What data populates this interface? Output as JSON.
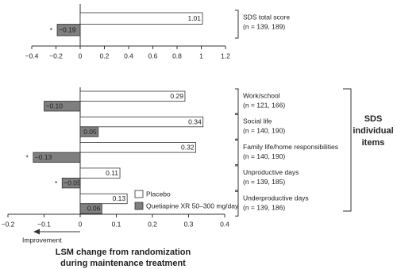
{
  "chart_data": [
    {
      "type": "bar",
      "orientation": "horizontal",
      "categories": [
        "SDS total score"
      ],
      "category_subtitles": [
        "(n = 139, 189)"
      ],
      "series": [
        {
          "color": "#ffffff",
          "values": [
            1.01
          ],
          "value_labels": [
            "1.01"
          ]
        },
        {
          "color": "#7f7f7f",
          "values": [
            -0.19
          ],
          "value_labels": [
            "−0.19"
          ]
        }
      ],
      "annotations": [
        {
          "text": "*",
          "series": 1,
          "index": 0
        }
      ],
      "xlim": [
        -0.4,
        1.2
      ],
      "xticks": [
        {
          "value": -0.4,
          "label": "−0.4"
        },
        {
          "value": -0.2,
          "label": "−0.2"
        },
        0,
        0.2,
        0.4,
        0.6,
        0.8,
        1,
        1.2
      ]
    },
    {
      "type": "bar",
      "orientation": "horizontal",
      "categories": [
        "Work/school",
        "Social life",
        "Family life/home responsibilities",
        "Unproductive days",
        "Underproductive days"
      ],
      "category_subtitles": [
        "(n = 121, 166)",
        "(n = 140, 190)",
        "(n = 140, 190)",
        "(n = 139, 185)",
        "(n = 139, 186)"
      ],
      "group_label": [
        "SDS",
        "individual",
        "items"
      ],
      "series": [
        {
          "name": "Placebo",
          "color": "#ffffff",
          "values": [
            0.29,
            0.34,
            0.32,
            0.11,
            0.13
          ],
          "value_labels": [
            "0.29",
            "0.34",
            "0.32",
            "0.11",
            "0.13"
          ]
        },
        {
          "name": "Quetiapine XR 50–300 mg/day",
          "color": "#7f7f7f",
          "values": [
            -0.1,
            0.05,
            -0.13,
            -0.05,
            0.06
          ],
          "value_labels": [
            "−0.10",
            "0.05",
            "−0.13",
            "−0.05",
            "0.06"
          ]
        }
      ],
      "annotations": [
        {
          "text": "*",
          "series": 1,
          "index": 2
        },
        {
          "text": "*",
          "series": 1,
          "index": 3
        }
      ],
      "xlim": [
        -0.2,
        0.4
      ],
      "xticks": [
        {
          "value": -0.2,
          "label": "−0.2"
        },
        {
          "value": -0.1,
          "label": "−0.1"
        },
        0,
        0.1,
        0.2,
        0.3,
        0.4
      ],
      "improvement_label": "Improvement",
      "x_label": [
        "LSM change from randomization",
        "during maintenance treatment"
      ]
    }
  ]
}
